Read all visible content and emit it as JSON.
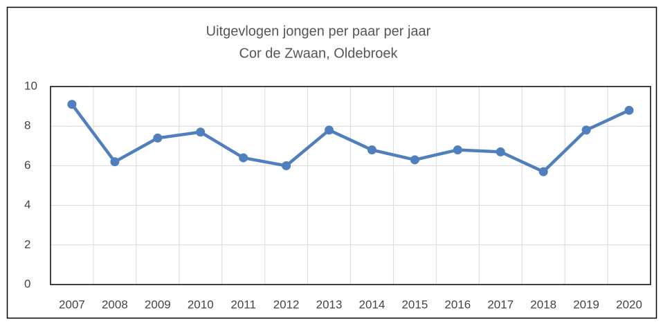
{
  "chart_data": {
    "type": "line",
    "title": "Uitgevlogen jongen per paar per jaar",
    "subtitle": "Cor de Zwaan, Oldebroek",
    "categories": [
      "2007",
      "2008",
      "2009",
      "2010",
      "2011",
      "2012",
      "2013",
      "2014",
      "2015",
      "2016",
      "2017",
      "2018",
      "2019",
      "2020"
    ],
    "values": [
      9.1,
      6.2,
      7.4,
      7.7,
      6.4,
      6.0,
      7.8,
      6.8,
      6.3,
      6.8,
      6.7,
      5.7,
      7.8,
      8.8
    ],
    "color": "#4f7fbd",
    "ylim": [
      0,
      10
    ],
    "yticks": [
      0,
      2,
      4,
      6,
      8,
      10
    ],
    "grid": true
  }
}
